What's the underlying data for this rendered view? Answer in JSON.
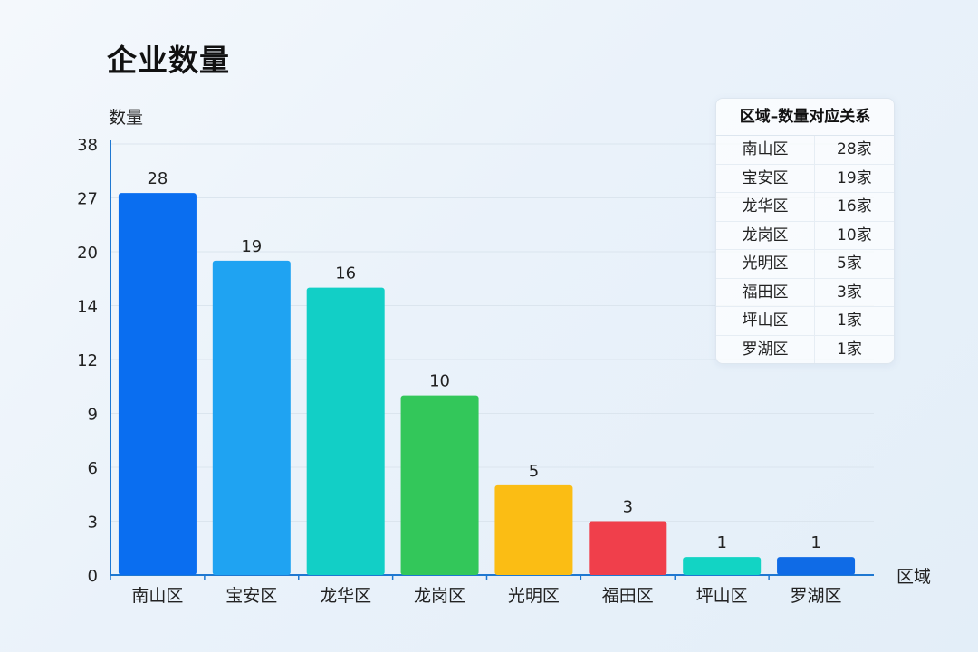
{
  "chart_data": {
    "type": "bar",
    "title": "企业数量",
    "ylabel": "数量",
    "xlabel": "区域",
    "categories": [
      "南山区",
      "宝安区",
      "龙华区",
      "龙岗区",
      "光明区",
      "福田区",
      "坪山区",
      "罗湖区"
    ],
    "values": [
      28,
      19,
      16,
      10,
      5,
      3,
      1,
      1
    ],
    "y_ticks": [
      "0",
      "3",
      "6",
      "9",
      "12",
      "14",
      "20",
      "27",
      "38"
    ],
    "grid": true,
    "colors": [
      "#0a6ef0",
      "#1fa3f2",
      "#12cfc6",
      "#33c75a",
      "#fbbd14",
      "#f03f4b",
      "#12d4c4",
      "#0f6be6"
    ],
    "axis_color": "#1f78d1"
  },
  "table": {
    "header": "区域–数量对应关系",
    "rows": [
      {
        "region": "南山区",
        "count": "28家"
      },
      {
        "region": "宝安区",
        "count": "19家"
      },
      {
        "region": "龙华区",
        "count": "16家"
      },
      {
        "region": "龙岗区",
        "count": "10家"
      },
      {
        "region": "光明区",
        "count": "5家"
      },
      {
        "region": "福田区",
        "count": "3家"
      },
      {
        "region": "坪山区",
        "count": "1家"
      },
      {
        "region": "罗湖区",
        "count": "1家"
      }
    ]
  }
}
